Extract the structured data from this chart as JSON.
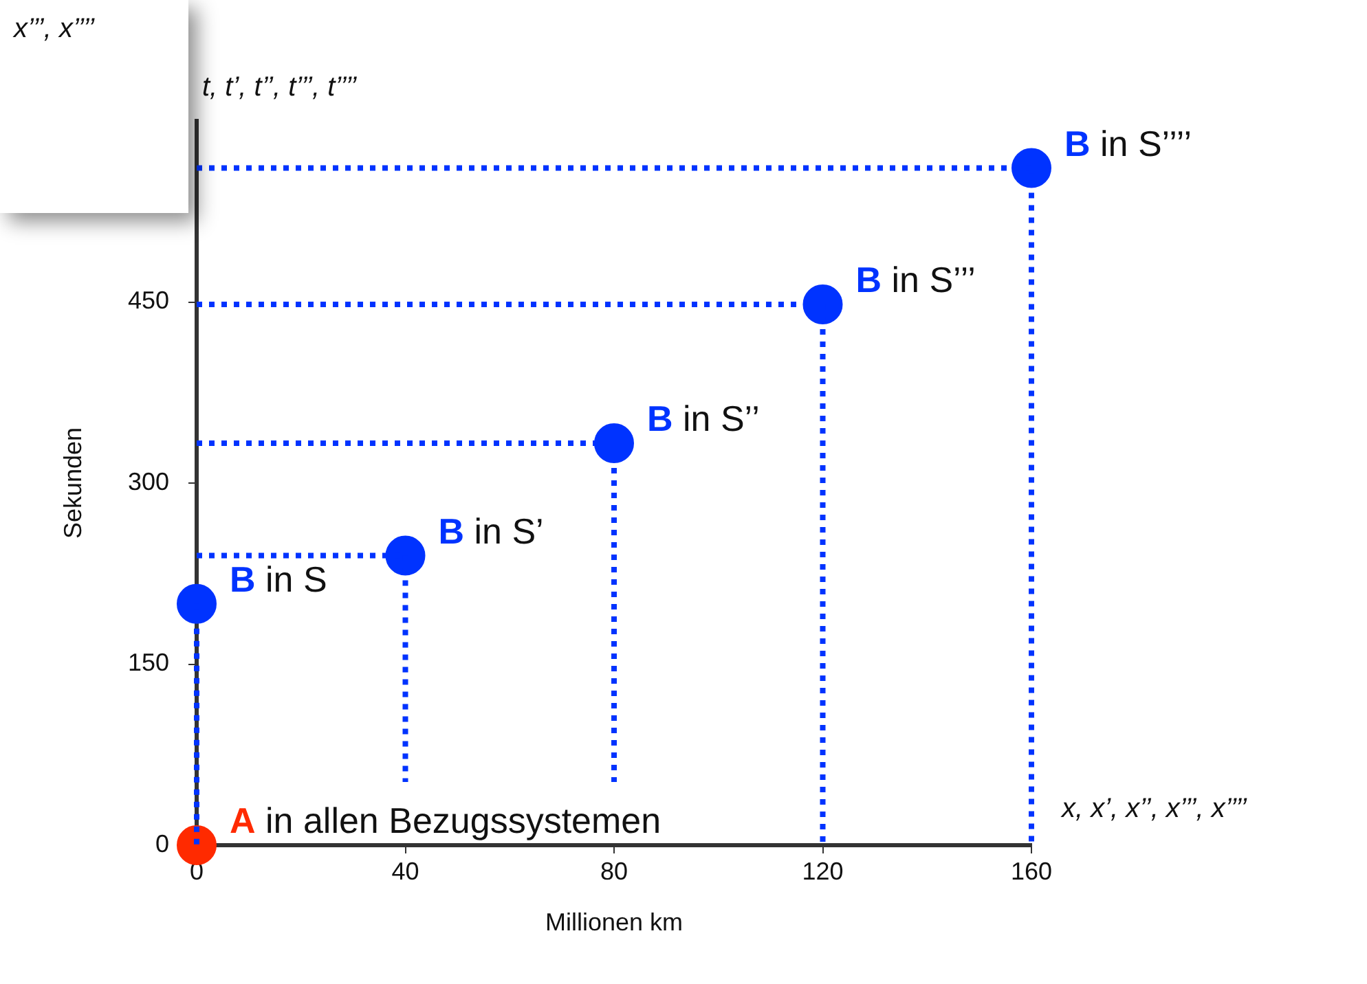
{
  "chart_data": {
    "type": "scatter",
    "xlabel": "Millionen km",
    "ylabel": "Sekunden",
    "xlim": [
      0,
      160
    ],
    "xticks": [
      0,
      40,
      80,
      120,
      160
    ],
    "ylim": [
      0,
      600
    ],
    "yticks": [
      0,
      150,
      300,
      450
    ],
    "marker": "circle",
    "legend": false,
    "annotations": [
      "x, x’, x’’, x’’’, x’’’’",
      "t, t’, t’’, t’’’, t’’’’",
      "x’’’, x’’’’"
    ],
    "series": [
      {
        "name": "A in allen Bezugssystemen",
        "color": "#ff2a00",
        "x": [
          0
        ],
        "values": [
          0
        ]
      },
      {
        "name": "B in S",
        "color": "#0033ff",
        "x": [
          0
        ],
        "values": [
          200
        ]
      },
      {
        "name": "B in S’",
        "color": "#0033ff",
        "x": [
          40
        ],
        "values": [
          240
        ]
      },
      {
        "name": "B in S’’",
        "color": "#0033ff",
        "x": [
          80
        ],
        "values": [
          333
        ]
      },
      {
        "name": "B in S’’’",
        "color": "#0033ff",
        "x": [
          120
        ],
        "values": [
          448
        ]
      },
      {
        "name": "B in S’’’’",
        "color": "#0033ff",
        "x": [
          160
        ],
        "values": [
          561
        ]
      }
    ]
  }
}
